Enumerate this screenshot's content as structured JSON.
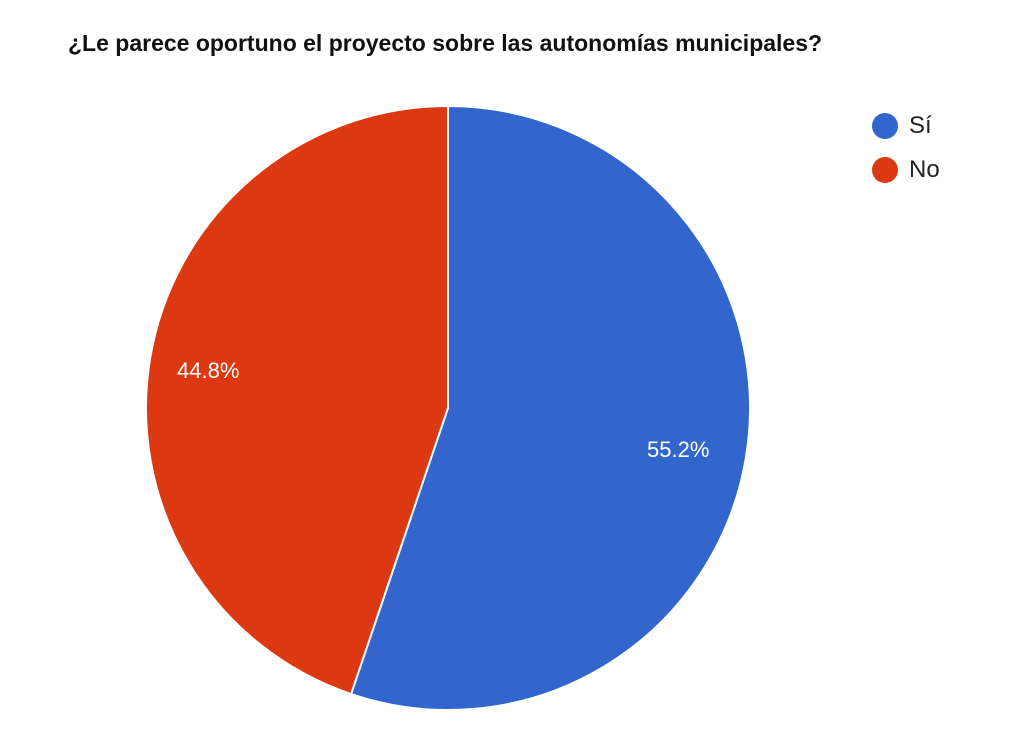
{
  "title": "¿Le parece oportuno el proyecto sobre las autonomías municipales?",
  "legend": [
    {
      "label": "Sí",
      "color": "#3366cc"
    },
    {
      "label": "No",
      "color": "#dc3912"
    }
  ],
  "labels": {
    "si": "55.2%",
    "no": "44.8%"
  },
  "chart_data": {
    "type": "pie",
    "title": "¿Le parece oportuno el proyecto sobre las autonomías municipales?",
    "categories": [
      "Sí",
      "No"
    ],
    "values": [
      55.2,
      44.8
    ],
    "colors": [
      "#3366cc",
      "#dc3912"
    ],
    "legend_position": "right",
    "value_labels": [
      "55.2%",
      "44.8%"
    ]
  }
}
